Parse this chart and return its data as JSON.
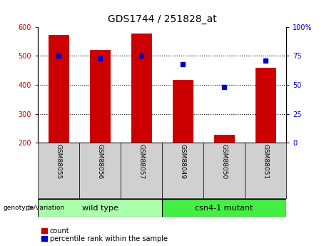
{
  "title": "GDS1744 / 251828_at",
  "samples": [
    "GSM88055",
    "GSM88056",
    "GSM88057",
    "GSM88049",
    "GSM88050",
    "GSM88051"
  ],
  "counts": [
    572,
    520,
    578,
    417,
    228,
    460
  ],
  "percentile_ranks": [
    75,
    73,
    75,
    68,
    48,
    71
  ],
  "ylim_left": [
    200,
    600
  ],
  "ylim_right": [
    0,
    100
  ],
  "yticks_left": [
    200,
    300,
    400,
    500,
    600
  ],
  "yticks_right": [
    0,
    25,
    50,
    75,
    100
  ],
  "ytick_right_labels": [
    "0",
    "25",
    "50",
    "75",
    "100%"
  ],
  "bar_color": "#cc0000",
  "dot_color": "#0000cc",
  "left_tick_color": "#cc0000",
  "right_tick_color": "#0000cc",
  "wild_type_color": "#aaffaa",
  "mutant_color": "#44ee44",
  "sample_bg_color": "#d0d0d0",
  "legend_label_count": "count",
  "legend_label_pct": "percentile rank within the sample",
  "bar_width": 0.5,
  "bar_bottom": 200,
  "wt_label": "wild type",
  "mut_label": "csn4-1 mutant",
  "genotype_label": "genotype/variation"
}
